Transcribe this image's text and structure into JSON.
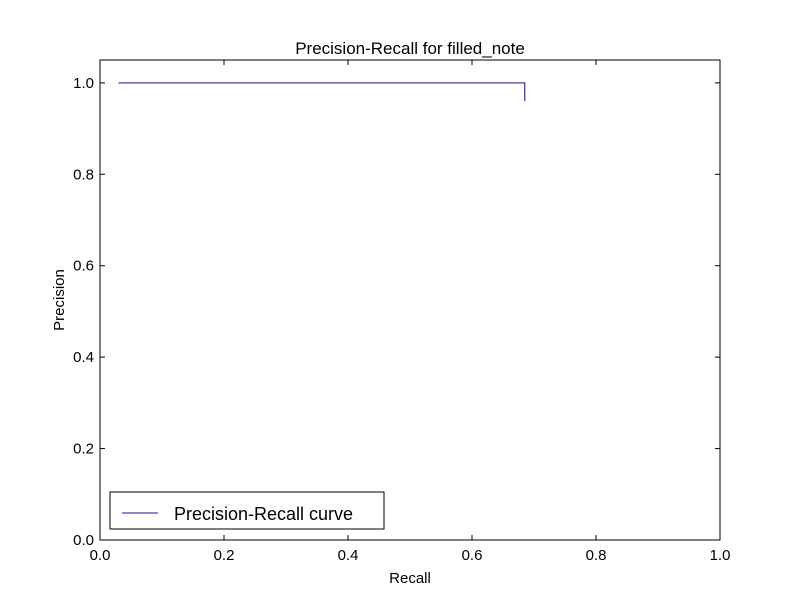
{
  "chart_data": {
    "type": "line",
    "title": "Precision-Recall for filled_note",
    "xlabel": "Recall",
    "ylabel": "Precision",
    "xlim": [
      0.0,
      1.0
    ],
    "ylim": [
      0.0,
      1.05
    ],
    "xticks": [
      "0.0",
      "0.2",
      "0.4",
      "0.6",
      "0.8",
      "1.0"
    ],
    "yticks": [
      "0.0",
      "0.2",
      "0.4",
      "0.6",
      "0.8",
      "1.0"
    ],
    "grid": false,
    "legend_position": "lower-left",
    "series": [
      {
        "name": "Precision-Recall curve",
        "color": "#4b3a9e",
        "x": [
          0.03,
          0.685,
          0.685
        ],
        "y": [
          1.0,
          1.0,
          0.96
        ]
      }
    ]
  }
}
